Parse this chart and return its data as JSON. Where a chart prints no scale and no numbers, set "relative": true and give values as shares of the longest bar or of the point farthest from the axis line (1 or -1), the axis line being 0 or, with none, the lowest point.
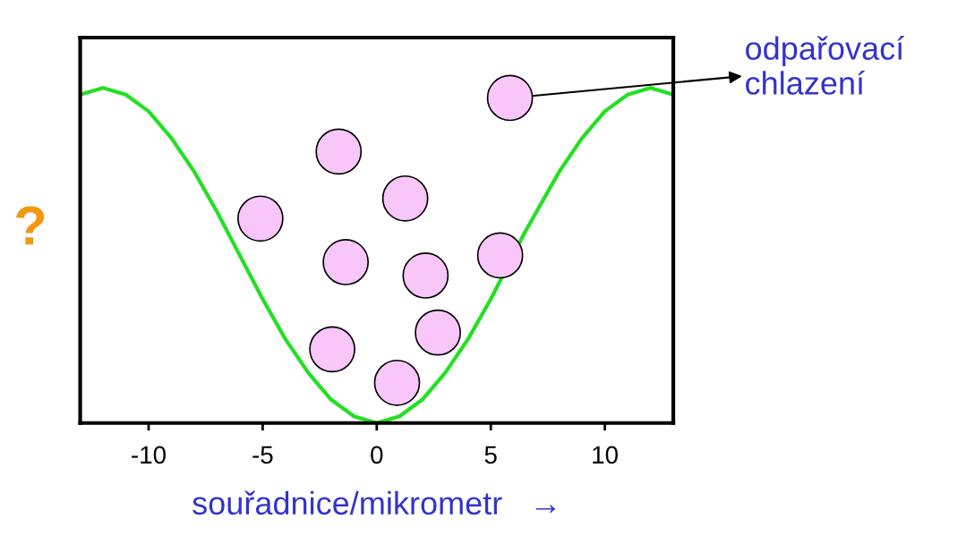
{
  "chart_data": {
    "type": "line",
    "relative": true,
    "xlabel": "souřadnice/mikrometr   →",
    "ylabel": "?",
    "xlim": [
      -13,
      13
    ],
    "xticks": [
      -10,
      -5,
      0,
      5,
      10
    ],
    "tick_labels": "x",
    "grid": false,
    "legend": false,
    "series": [
      {
        "color": "#22e022",
        "marker": "none",
        "line_style": "solid",
        "x": [
          -13,
          -12,
          -11,
          -10,
          -9,
          -8,
          -7,
          -6,
          -5,
          -4,
          -3,
          -2,
          -1,
          0,
          1,
          2,
          3,
          4,
          5,
          6.5,
          7,
          8,
          9,
          10,
          11,
          12,
          13
        ],
        "values": [
          0.98,
          1.0,
          0.98,
          0.93,
          0.85,
          0.75,
          0.63,
          0.5,
          0.37,
          0.25,
          0.15,
          0.07,
          0.02,
          0.0,
          0.02,
          0.07,
          0.15,
          0.25,
          0.37,
          0.57,
          0.63,
          0.75,
          0.85,
          0.93,
          0.98,
          1.0,
          0.98
        ]
      },
      {
        "type": "scatter",
        "color": "#f9c6f9",
        "marker": "circle",
        "x": [
          5.84,
          -1.67,
          1.25,
          -5.1,
          -1.36,
          2.14,
          5.41,
          -1.95,
          2.68,
          0.89
        ],
        "values": [
          0.97,
          0.81,
          0.67,
          0.61,
          0.48,
          0.44,
          0.5,
          0.22,
          0.27,
          0.12
        ]
      }
    ],
    "annotations": [
      {
        "text": "odpařovací\nchlazení",
        "x": 5.84,
        "y": 0.97
      }
    ]
  }
}
